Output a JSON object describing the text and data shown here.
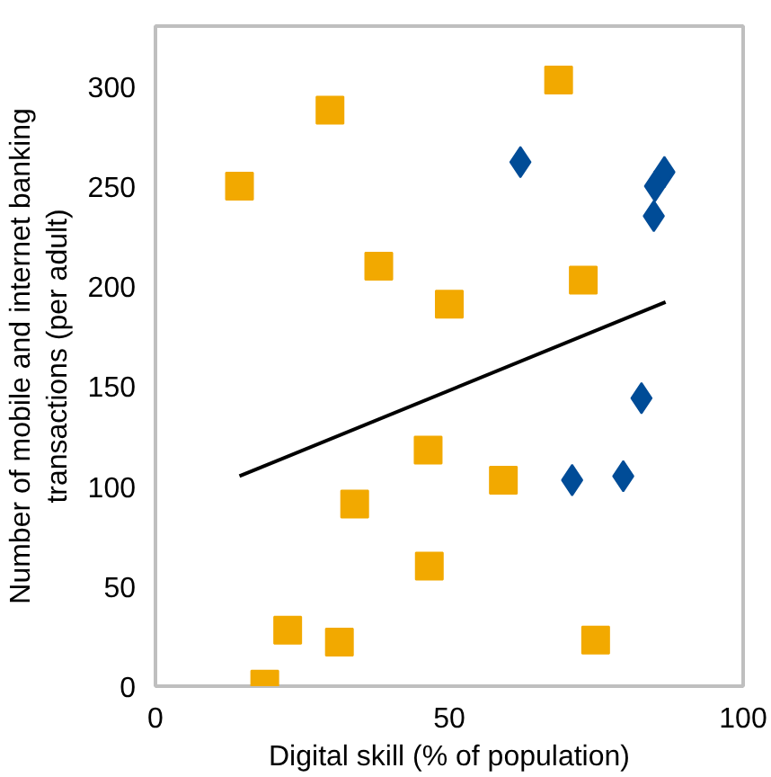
{
  "chart_data": {
    "type": "scatter",
    "xlabel": "Digital skill (% of population)",
    "ylabel": "Number of mobile and internet banking\ntransactions (per adult)",
    "xlim": [
      0,
      100
    ],
    "ylim": [
      0,
      330
    ],
    "xticks": [
      0,
      50,
      100
    ],
    "yticks": [
      0,
      50,
      100,
      150,
      200,
      250,
      300
    ],
    "grid": false,
    "series": [
      {
        "marker": "square",
        "color": "#f2a900",
        "x": [
          14.3,
          29.7,
          68.6,
          38.0,
          50.0,
          72.8,
          46.4,
          59.2,
          33.9,
          46.6,
          22.5,
          31.3,
          74.9,
          18.6
        ],
        "values": [
          250,
          288,
          303,
          210,
          191,
          203,
          118,
          103,
          91,
          60,
          28,
          22,
          23,
          1
        ]
      },
      {
        "marker": "diamond",
        "color": "#004c97",
        "x": [
          62.1,
          86.6,
          85.0,
          84.8,
          82.7,
          70.9,
          79.6
        ],
        "values": [
          262,
          257,
          250,
          235,
          144,
          103,
          105
        ]
      },
      {
        "type": "line",
        "marker": "none",
        "color": "#000000",
        "x": [
          14.3,
          86.8
        ],
        "values": [
          105,
          192
        ]
      }
    ]
  }
}
